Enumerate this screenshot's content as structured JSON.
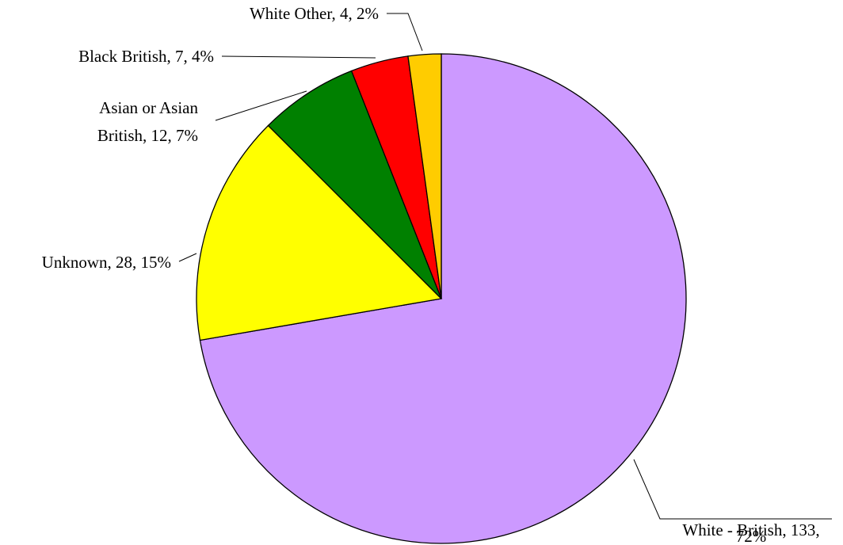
{
  "chart_data": {
    "type": "pie",
    "slices": [
      {
        "name": "White - British",
        "value": 133,
        "percent": "72%",
        "color": "#CC99FF"
      },
      {
        "name": "Unknown",
        "value": 28,
        "percent": "15%",
        "color": "#FFFF00"
      },
      {
        "name": "Asian or Asian British",
        "value": 12,
        "percent": "7%",
        "color": "#008000"
      },
      {
        "name": "Black British",
        "value": 7,
        "percent": "4%",
        "color": "#FF0000"
      },
      {
        "name": "White Other",
        "value": 4,
        "percent": "2%",
        "color": "#FFCC00"
      }
    ],
    "labels": [
      {
        "lines": [
          "White - British, 133,",
          "72%"
        ]
      },
      {
        "lines": [
          "Unknown, 28, 15%"
        ]
      },
      {
        "lines": [
          "Asian or Asian",
          "British, 12, 7%"
        ]
      },
      {
        "lines": [
          "Black British, 7, 4%"
        ]
      },
      {
        "lines": [
          "White Other, 4, 2%"
        ]
      }
    ]
  }
}
